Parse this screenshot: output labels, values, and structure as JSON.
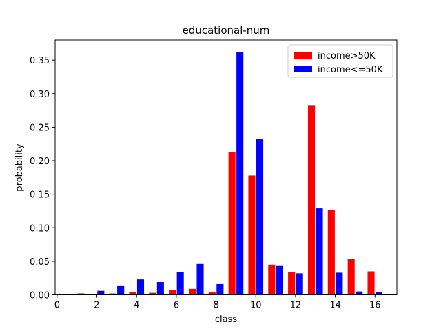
{
  "chart_data": {
    "type": "bar",
    "title": "educational-num",
    "xlabel": "class",
    "ylabel": "probability",
    "x": [
      1,
      2,
      3,
      4,
      5,
      6,
      7,
      8,
      9,
      10,
      11,
      12,
      13,
      14,
      15,
      16
    ],
    "xlim": [
      -0.1,
      17.1
    ],
    "ylim": [
      0,
      0.38
    ],
    "xticks": [
      0,
      2,
      4,
      6,
      8,
      10,
      12,
      14,
      16
    ],
    "yticks": [
      0.0,
      0.05,
      0.1,
      0.15,
      0.2,
      0.25,
      0.3,
      0.35
    ],
    "ytick_labels": [
      "0.00",
      "0.05",
      "0.10",
      "0.15",
      "0.20",
      "0.25",
      "0.30",
      "0.35"
    ],
    "legend_position": "top-right",
    "grid": false,
    "series": [
      {
        "name": "income>50K",
        "color": "#ff0000",
        "values": [
          0.0,
          0.0,
          0.002,
          0.004,
          0.003,
          0.007,
          0.009,
          0.004,
          0.213,
          0.178,
          0.045,
          0.034,
          0.283,
          0.126,
          0.054,
          0.035
        ]
      },
      {
        "name": "income<=50K",
        "color": "#0000ff",
        "values": [
          0.002,
          0.006,
          0.013,
          0.023,
          0.019,
          0.034,
          0.046,
          0.016,
          0.362,
          0.232,
          0.043,
          0.032,
          0.129,
          0.033,
          0.005,
          0.004
        ]
      }
    ]
  }
}
